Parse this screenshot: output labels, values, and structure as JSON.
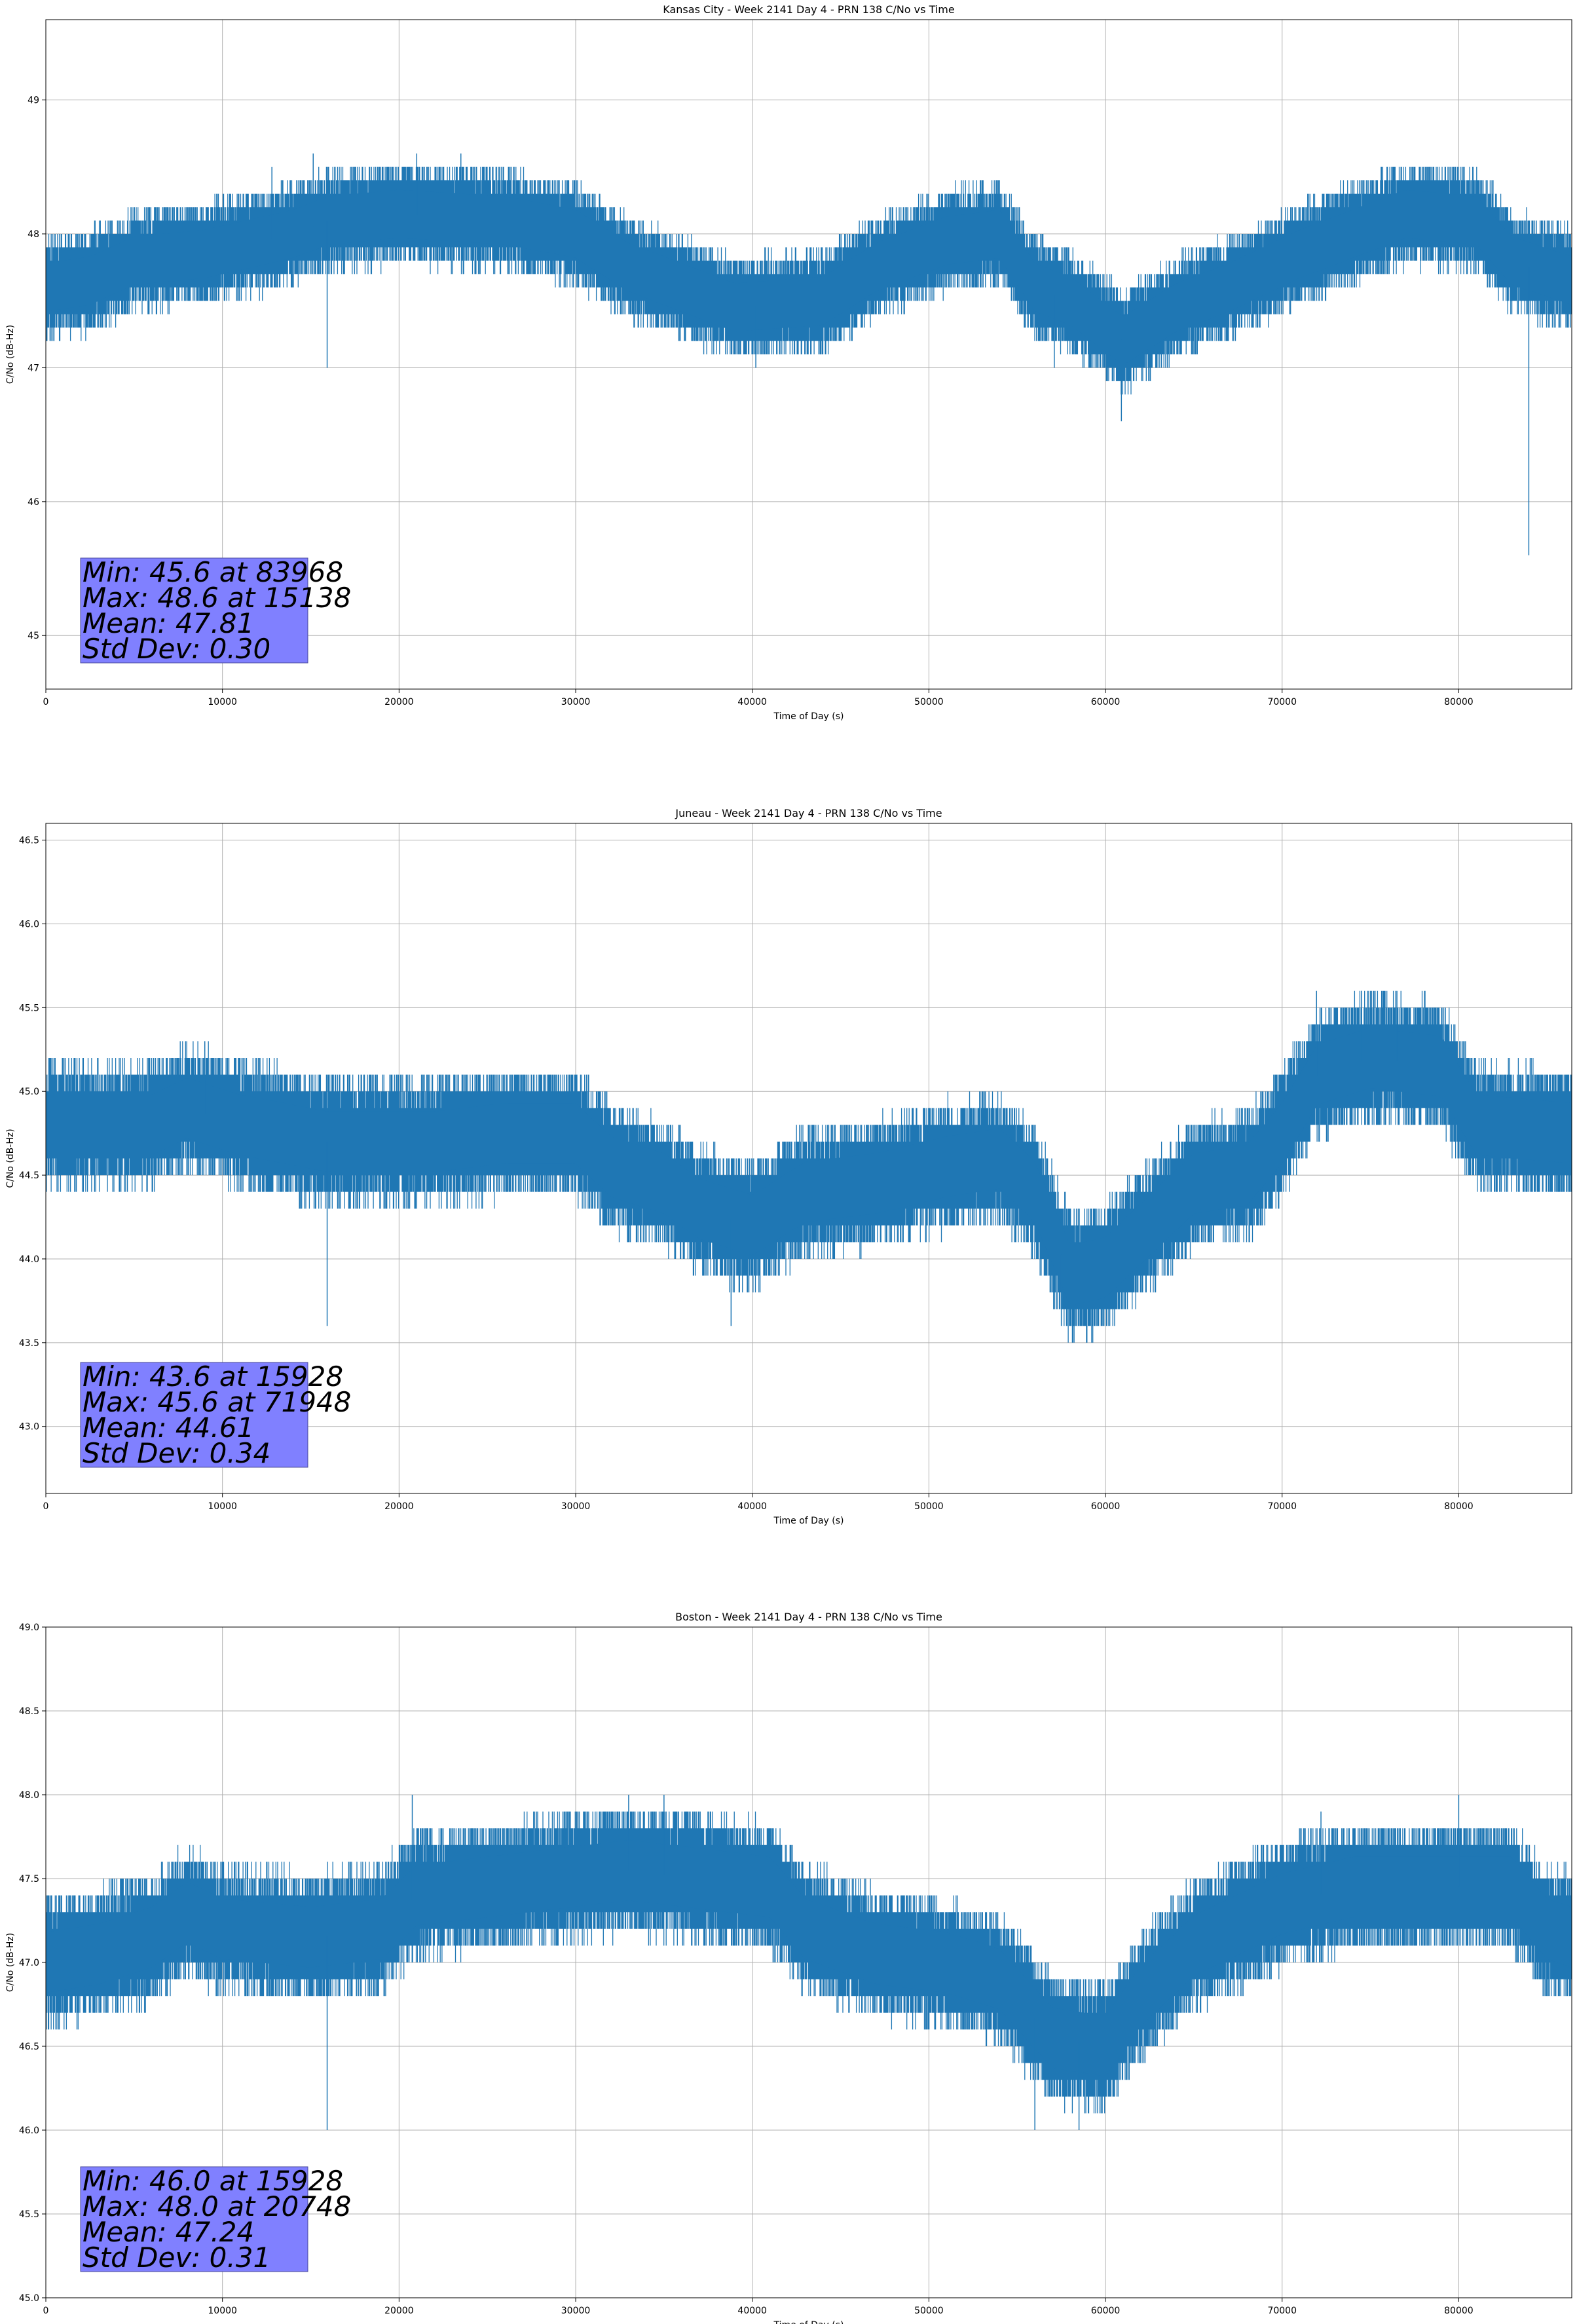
{
  "chart_data": [
    {
      "type": "line",
      "title": "Kansas City - Week 2141 Day 4 - PRN 138 C/No vs Time",
      "xlabel": "Time of Day (s)",
      "ylabel": "C/No (dB-Hz)",
      "xlim": [
        0,
        86400
      ],
      "ylim": [
        44.6,
        49.6
      ],
      "xticks": [
        0,
        10000,
        20000,
        30000,
        40000,
        50000,
        60000,
        70000,
        80000
      ],
      "yticks": [
        45,
        46,
        47,
        48,
        49
      ],
      "grid": true,
      "series_color": "#1f77b4",
      "profile": [
        [
          0,
          47.6
        ],
        [
          2500,
          47.65
        ],
        [
          5000,
          47.8
        ],
        [
          9000,
          47.85
        ],
        [
          14000,
          48.0
        ],
        [
          16000,
          48.1
        ],
        [
          20000,
          48.15
        ],
        [
          26000,
          48.1
        ],
        [
          30000,
          48.0
        ],
        [
          33000,
          47.75
        ],
        [
          36000,
          47.6
        ],
        [
          39000,
          47.45
        ],
        [
          44000,
          47.5
        ],
        [
          47000,
          47.75
        ],
        [
          51000,
          47.95
        ],
        [
          54000,
          48.0
        ],
        [
          56000,
          47.6
        ],
        [
          58000,
          47.5
        ],
        [
          61000,
          47.2
        ],
        [
          64000,
          47.45
        ],
        [
          67000,
          47.6
        ],
        [
          71000,
          47.85
        ],
        [
          74000,
          48.0
        ],
        [
          77000,
          48.15
        ],
        [
          81000,
          48.1
        ],
        [
          83000,
          47.8
        ],
        [
          86400,
          47.65
        ]
      ],
      "extremes": [
        [
          15928,
          47.0
        ],
        [
          15138,
          48.6
        ],
        [
          21000,
          48.6
        ],
        [
          23500,
          48.6
        ],
        [
          12800,
          48.5
        ],
        [
          60900,
          46.6
        ],
        [
          83968,
          45.6
        ],
        [
          40200,
          47.0
        ],
        [
          57100,
          47.0
        ]
      ],
      "stats_lines": [
        "Min: 45.6 at 83968",
        "Max: 48.6 at 15138",
        "Mean: 47.81",
        "Std Dev: 0.30"
      ]
    },
    {
      "type": "line",
      "title": "Juneau - Week 2141 Day 4 - PRN 138 C/No vs Time",
      "xlabel": "Time of Day (s)",
      "ylabel": "C/No (dB-Hz)",
      "xlim": [
        0,
        86400
      ],
      "ylim": [
        42.6,
        46.6
      ],
      "xticks": [
        0,
        10000,
        20000,
        30000,
        40000,
        50000,
        60000,
        70000,
        80000
      ],
      "yticks": [
        43.0,
        43.5,
        44.0,
        44.5,
        45.0,
        45.5,
        46.0,
        46.5
      ],
      "grid": true,
      "series_color": "#1f77b4",
      "profile": [
        [
          0,
          44.8
        ],
        [
          6000,
          44.8
        ],
        [
          8000,
          44.9
        ],
        [
          11000,
          44.8
        ],
        [
          16000,
          44.7
        ],
        [
          22000,
          44.7
        ],
        [
          26000,
          44.75
        ],
        [
          30000,
          44.75
        ],
        [
          32000,
          44.55
        ],
        [
          35000,
          44.45
        ],
        [
          37000,
          44.3
        ],
        [
          40000,
          44.2
        ],
        [
          43000,
          44.4
        ],
        [
          47000,
          44.45
        ],
        [
          51000,
          44.55
        ],
        [
          54000,
          44.6
        ],
        [
          56000,
          44.4
        ],
        [
          58000,
          43.9
        ],
        [
          60000,
          43.95
        ],
        [
          63000,
          44.25
        ],
        [
          65000,
          44.45
        ],
        [
          68000,
          44.5
        ],
        [
          70000,
          44.75
        ],
        [
          72000,
          45.1
        ],
        [
          75000,
          45.2
        ],
        [
          79000,
          45.15
        ],
        [
          81000,
          44.8
        ],
        [
          86400,
          44.75
        ]
      ],
      "extremes": [
        [
          15928,
          43.6
        ],
        [
          71948,
          45.6
        ],
        [
          74500,
          45.6
        ],
        [
          76500,
          45.6
        ],
        [
          9000,
          45.3
        ],
        [
          38800,
          43.6
        ],
        [
          57500,
          43.6
        ]
      ],
      "stats_lines": [
        "Min: 43.6 at 15928",
        "Max: 45.6 at 71948",
        "Mean: 44.61",
        "Std Dev: 0.34"
      ]
    },
    {
      "type": "line",
      "title": "Boston - Week 2141 Day 4 - PRN 138 C/No vs Time",
      "xlabel": "Time of Day (s)",
      "ylabel": "C/No (dB-Hz)",
      "xlim": [
        0,
        86400
      ],
      "ylim": [
        45.0,
        49.0
      ],
      "xticks": [
        0,
        10000,
        20000,
        30000,
        40000,
        50000,
        60000,
        70000,
        80000
      ],
      "yticks": [
        45.0,
        45.5,
        46.0,
        46.5,
        47.0,
        47.5,
        48.0,
        48.5,
        49.0
      ],
      "grid": true,
      "series_color": "#1f77b4",
      "profile": [
        [
          0,
          47.0
        ],
        [
          3000,
          47.05
        ],
        [
          6000,
          47.15
        ],
        [
          8000,
          47.3
        ],
        [
          10000,
          47.2
        ],
        [
          15000,
          47.15
        ],
        [
          19000,
          47.2
        ],
        [
          21000,
          47.4
        ],
        [
          25000,
          47.45
        ],
        [
          29000,
          47.5
        ],
        [
          33000,
          47.55
        ],
        [
          37000,
          47.5
        ],
        [
          41000,
          47.45
        ],
        [
          43000,
          47.2
        ],
        [
          47000,
          47.05
        ],
        [
          51000,
          47.0
        ],
        [
          54000,
          46.9
        ],
        [
          57000,
          46.55
        ],
        [
          60000,
          46.5
        ],
        [
          62000,
          46.8
        ],
        [
          65000,
          47.1
        ],
        [
          67000,
          47.2
        ],
        [
          70000,
          47.35
        ],
        [
          74000,
          47.45
        ],
        [
          78000,
          47.45
        ],
        [
          83000,
          47.45
        ],
        [
          85000,
          47.2
        ],
        [
          86400,
          47.15
        ]
      ],
      "extremes": [
        [
          15928,
          46.0
        ],
        [
          20748,
          48.0
        ],
        [
          33000,
          48.0
        ],
        [
          35000,
          48.0
        ],
        [
          72200,
          47.9
        ],
        [
          80000,
          48.0
        ],
        [
          56000,
          46.0
        ],
        [
          58500,
          46.0
        ]
      ],
      "stats_lines": [
        "Min: 46.0 at 15928",
        "Max: 48.0 at 20748",
        "Mean: 47.24",
        "Std Dev: 0.31"
      ]
    }
  ]
}
